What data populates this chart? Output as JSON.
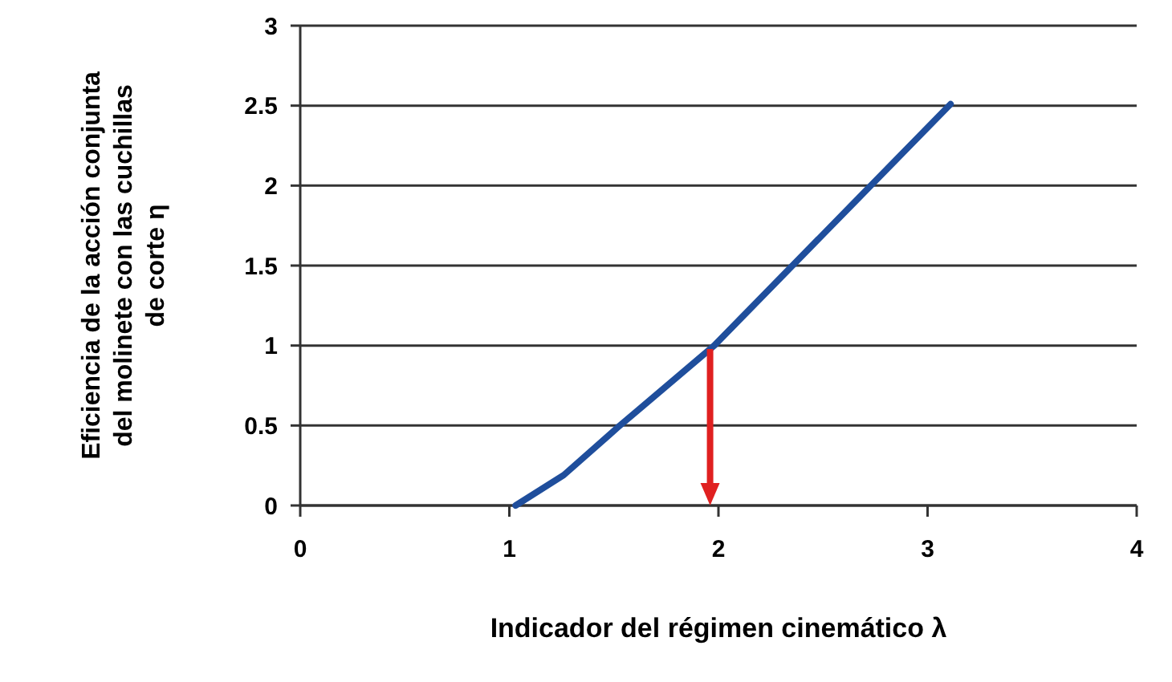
{
  "chart_data": {
    "type": "line",
    "xlabel": "Indicador del régimen cinemático λ",
    "ylabel": "Eficiencia de la acción conjunta del molinete con las cuchillas de corte η",
    "x": [
      1.03,
      1.26,
      1.52,
      1.98,
      3.11
    ],
    "series": [
      {
        "color": "#1f4e9c",
        "values": [
          0,
          0.19,
          0.49,
          1.0,
          2.51
        ]
      }
    ],
    "xlim": [
      0,
      4
    ],
    "xticks": [
      0,
      1,
      2,
      3,
      4
    ],
    "ylim": [
      0,
      3
    ],
    "yticks": [
      0,
      0.5,
      1,
      1.5,
      2,
      2.5,
      3
    ],
    "grid": "y",
    "marker": "none",
    "ref_lines": [
      {
        "axis": "x",
        "value": 1.96,
        "color": "#e02020"
      }
    ]
  }
}
